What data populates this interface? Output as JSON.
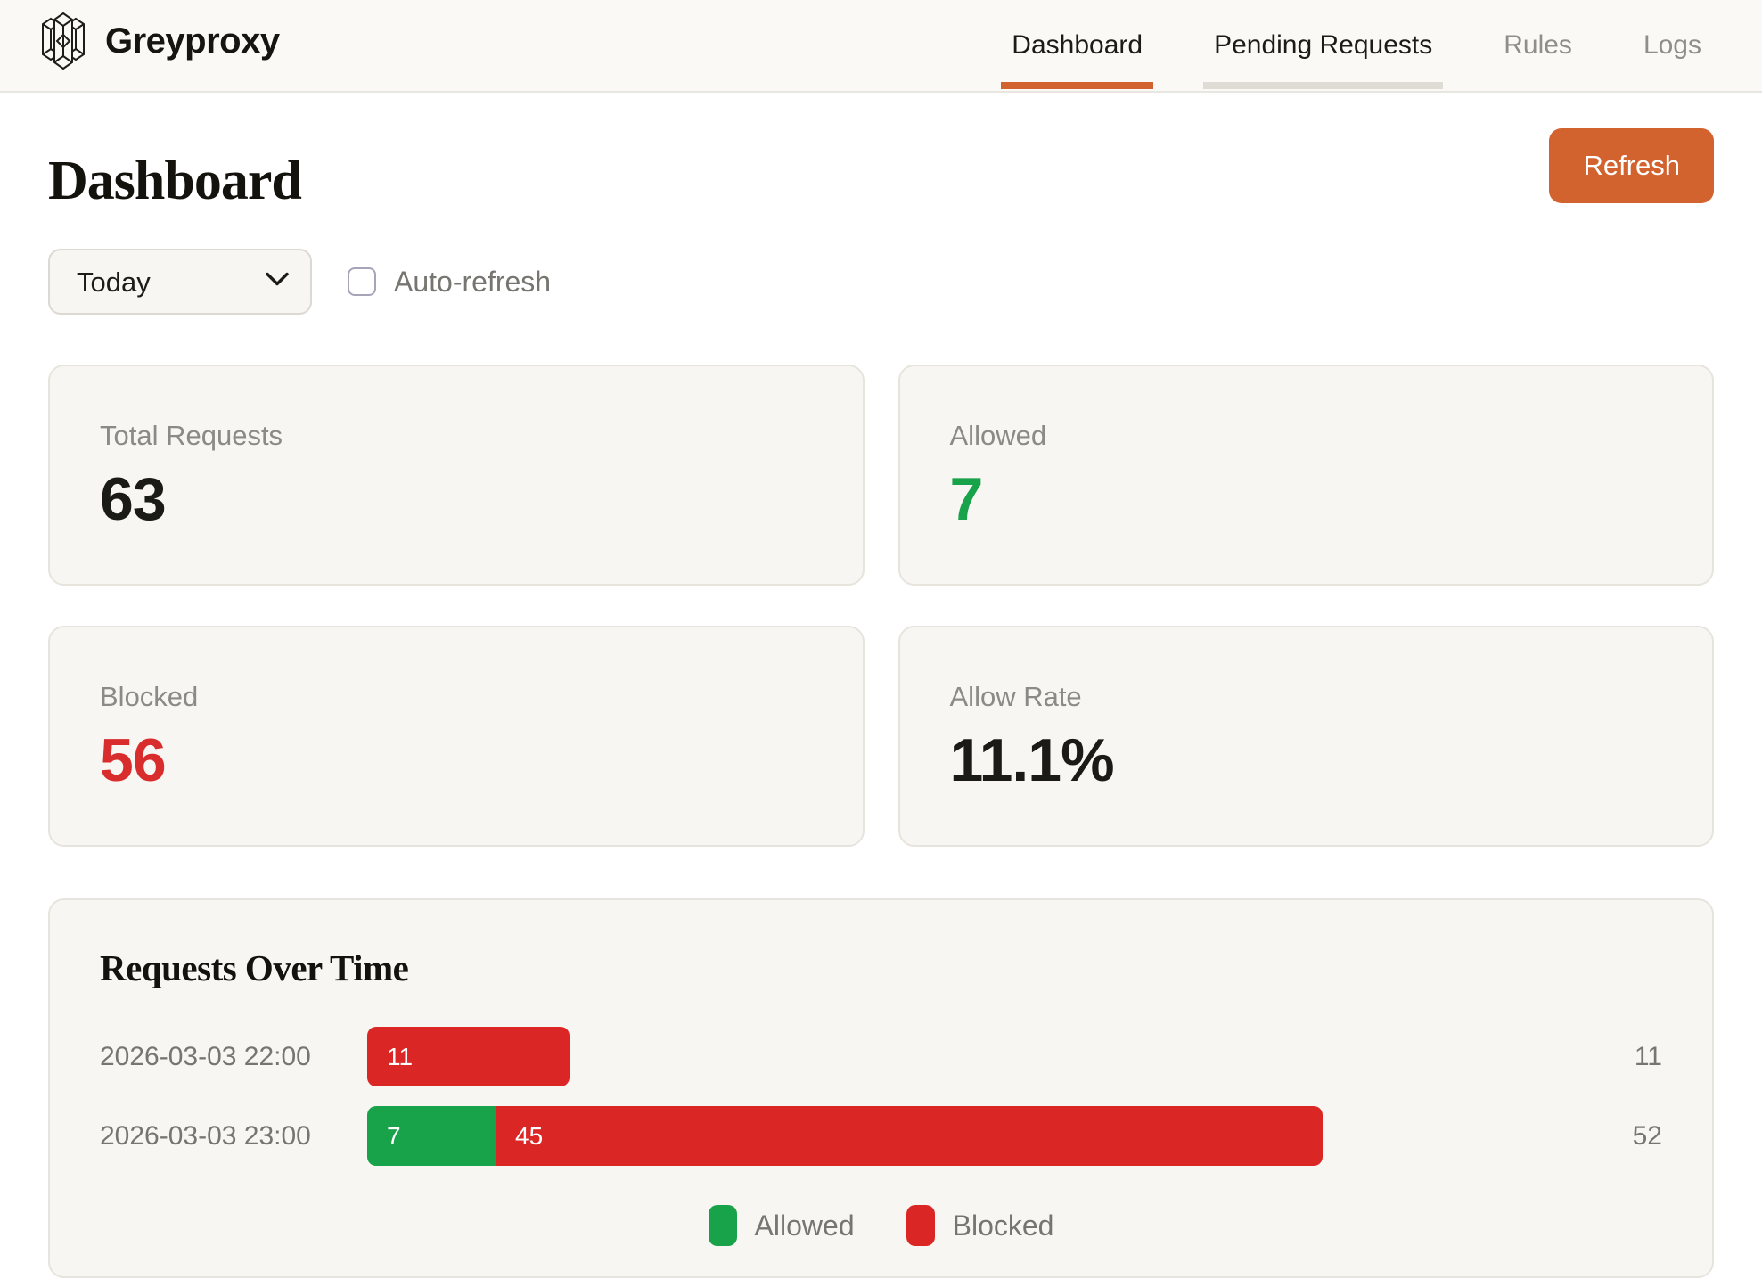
{
  "header": {
    "brand": "Greyproxy",
    "nav": [
      {
        "label": "Dashboard",
        "state": "active"
      },
      {
        "label": "Pending Requests",
        "state": "secondary"
      },
      {
        "label": "Rules",
        "state": "default"
      },
      {
        "label": "Logs",
        "state": "default"
      }
    ]
  },
  "page": {
    "title": "Dashboard"
  },
  "toolbar": {
    "refresh_label": "Refresh"
  },
  "filters": {
    "period_value": "Today",
    "auto_refresh_label": "Auto-refresh",
    "auto_refresh_checked": false
  },
  "stats": [
    {
      "label": "Total Requests",
      "value": "63",
      "color": "#1a1a17"
    },
    {
      "label": "Allowed",
      "value": "7",
      "color": "#18a24a"
    },
    {
      "label": "Blocked",
      "value": "56",
      "color": "#d92c2c"
    },
    {
      "label": "Allow Rate",
      "value": "11.1%",
      "color": "#1a1a17"
    }
  ],
  "chart_data": {
    "type": "bar",
    "orientation": "horizontal",
    "stacked": true,
    "title": "Requests Over Time",
    "categories": [
      "2026-03-03 22:00",
      "2026-03-03 23:00"
    ],
    "series": [
      {
        "name": "Allowed",
        "color": "#18a24a",
        "values": [
          0,
          7
        ]
      },
      {
        "name": "Blocked",
        "color": "#db2626",
        "values": [
          11,
          45
        ]
      }
    ],
    "totals": [
      11,
      52
    ],
    "xmax": 52,
    "grid": false,
    "legend_position": "bottom-center",
    "legend": [
      "Allowed",
      "Blocked"
    ]
  },
  "colors": {
    "accent_orange": "#d2622e",
    "green": "#18a24a",
    "red": "#db2626"
  }
}
